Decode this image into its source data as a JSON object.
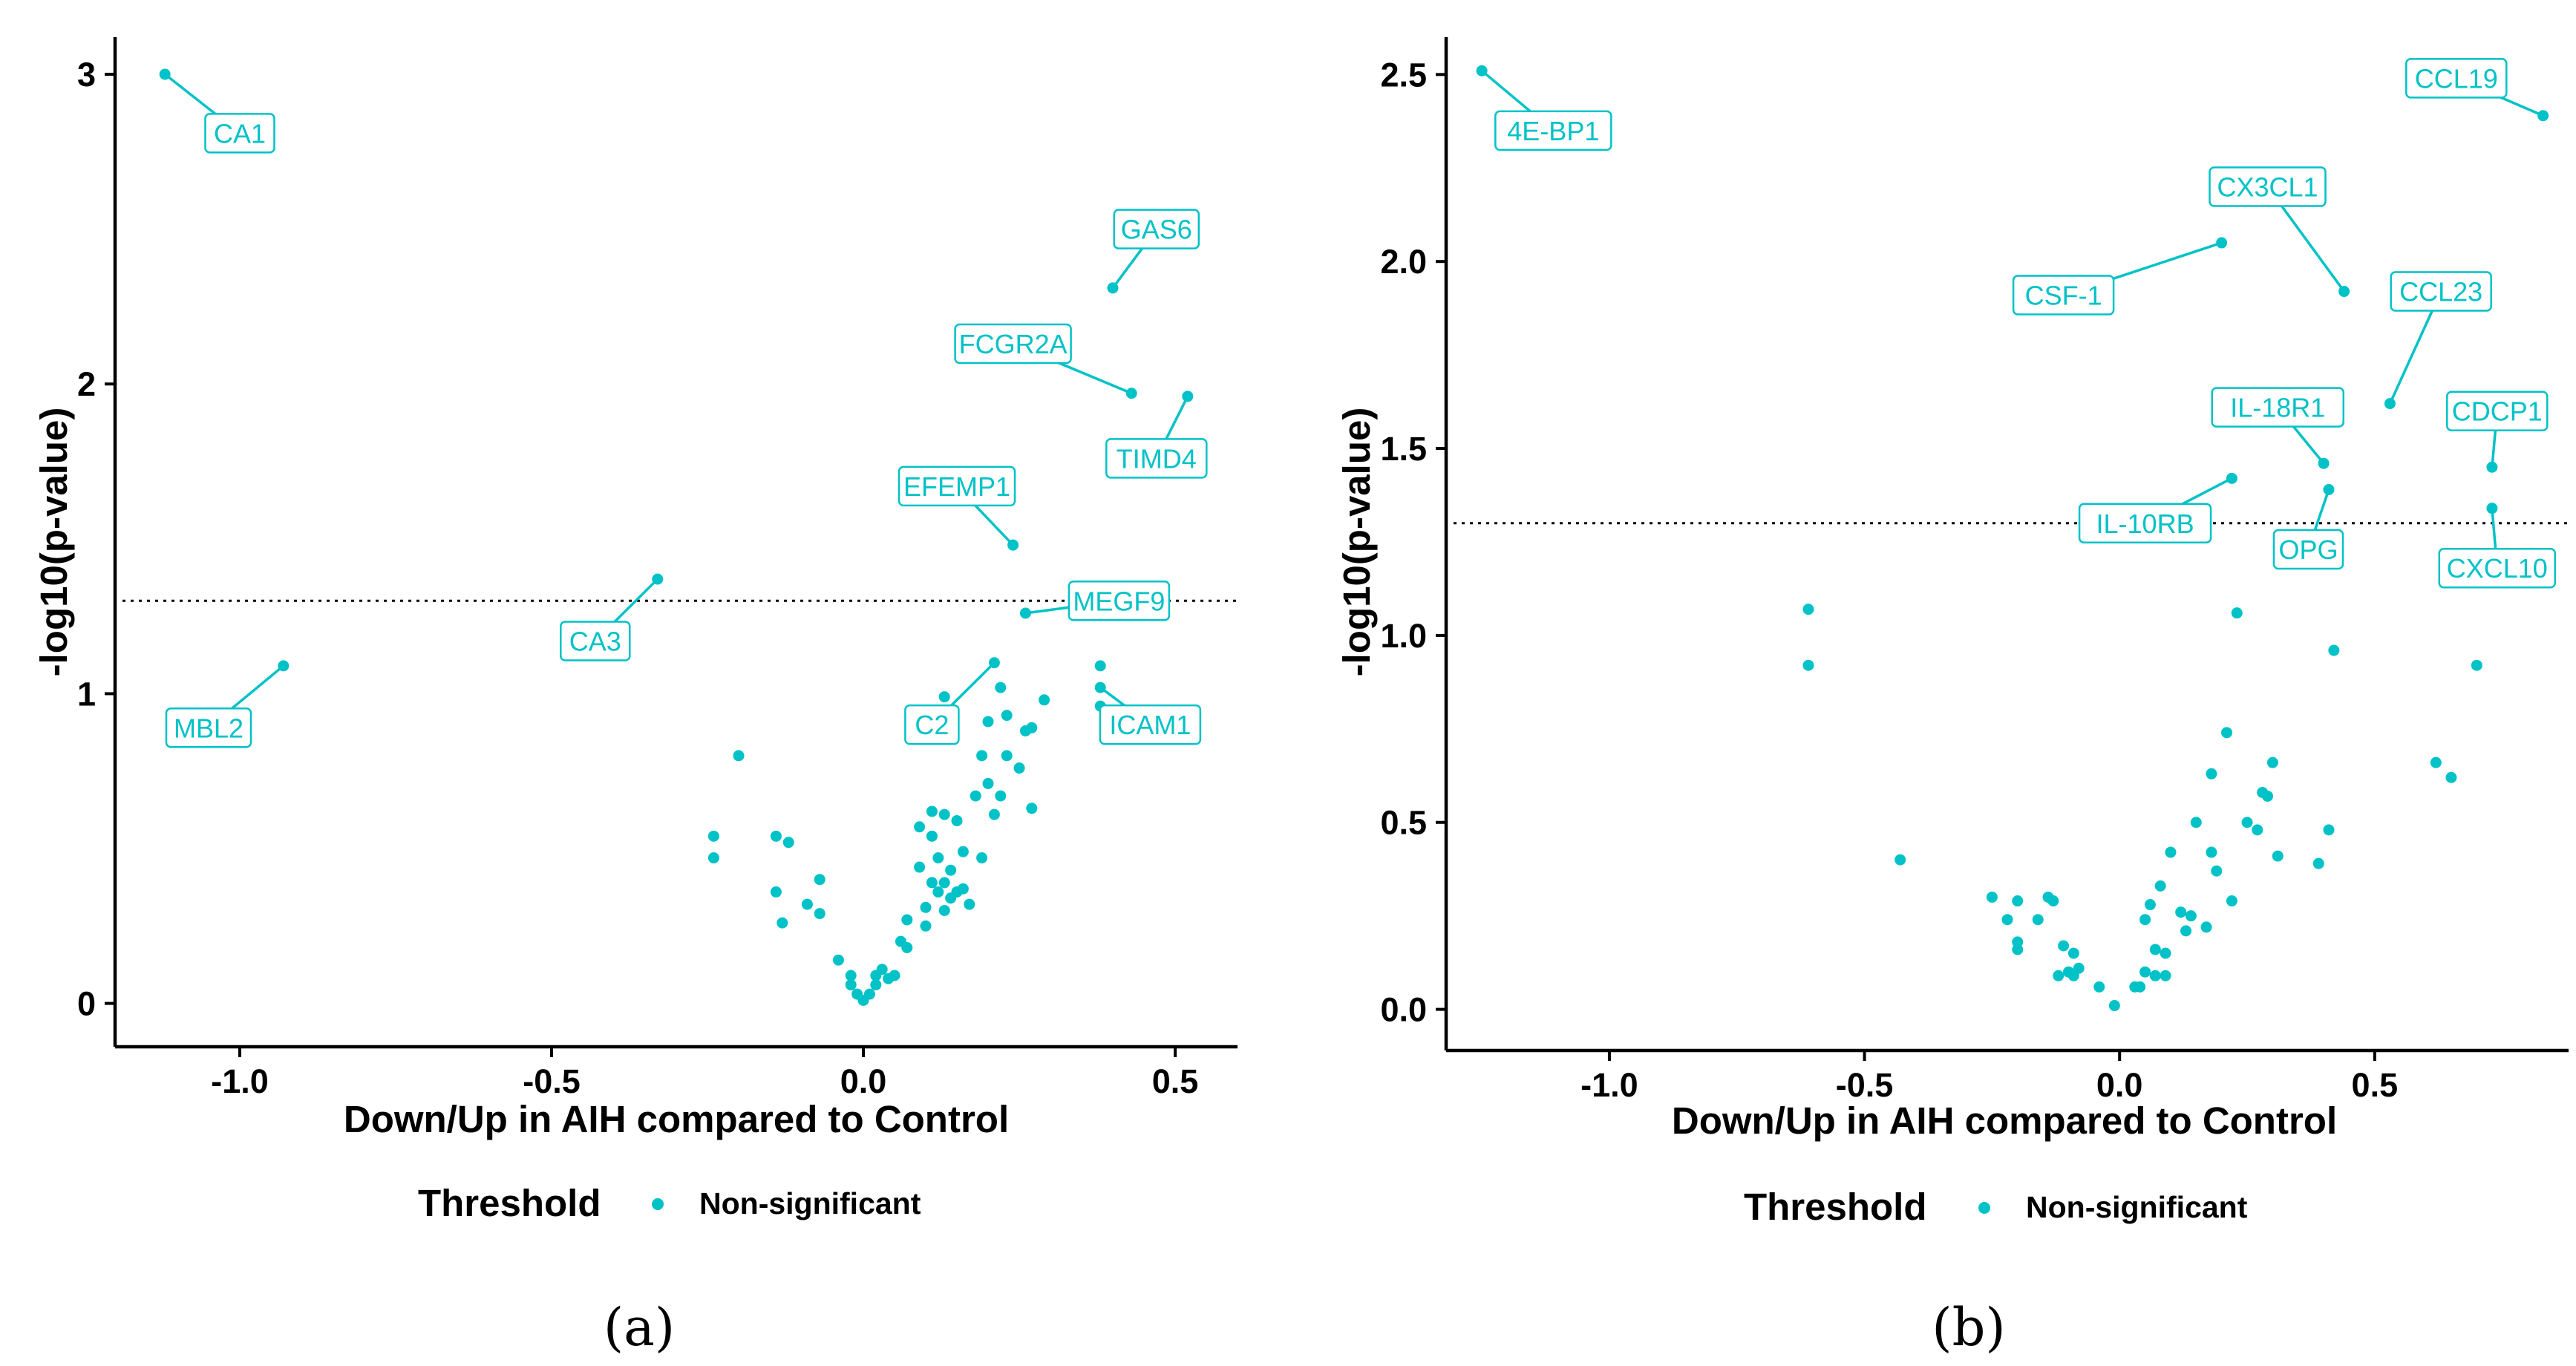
{
  "colors": {
    "point": "#00c2c7",
    "axis": "#000000"
  },
  "chart_data": [
    {
      "type": "scatter",
      "caption": "(a)",
      "xlabel": "Down/Up in AIH compared to Control",
      "ylabel": "-log10(p-value)",
      "xlim": [
        -1.2,
        0.6
      ],
      "ylim": [
        -0.14,
        3.12
      ],
      "xticks": [
        -1.0,
        -0.5,
        0.0,
        0.5
      ],
      "xtick_labels": [
        "-1.0",
        "-0.5",
        "0.0",
        "0.5"
      ],
      "yticks": [
        0,
        1,
        2,
        3
      ],
      "ytick_labels": [
        "0",
        "1",
        "2",
        "3"
      ],
      "threshold_y": 1.3,
      "legend": {
        "title": "Threshold",
        "label": "Non-significant"
      },
      "labeled_points": [
        {
          "label": "CA1",
          "x": -1.12,
          "y": 3.0,
          "lx": -1.0,
          "ly": 2.81
        },
        {
          "label": "GAS6",
          "x": 0.4,
          "y": 2.31,
          "lx": 0.47,
          "ly": 2.5
        },
        {
          "label": "FCGR2A",
          "x": 0.43,
          "y": 1.97,
          "lx": 0.24,
          "ly": 2.13
        },
        {
          "label": "TIMD4",
          "x": 0.52,
          "y": 1.96,
          "lx": 0.47,
          "ly": 1.76
        },
        {
          "label": "EFEMP1",
          "x": 0.24,
          "y": 1.48,
          "lx": 0.15,
          "ly": 1.67
        },
        {
          "label": "CA3",
          "x": -0.33,
          "y": 1.37,
          "lx": -0.43,
          "ly": 1.17
        },
        {
          "label": "MEGF9",
          "x": 0.26,
          "y": 1.26,
          "lx": 0.41,
          "ly": 1.3
        },
        {
          "label": "MBL2",
          "x": -0.93,
          "y": 1.09,
          "lx": -1.05,
          "ly": 0.89
        },
        {
          "label": "C2",
          "x": 0.21,
          "y": 1.1,
          "lx": 0.11,
          "ly": 0.9
        },
        {
          "label": "ICAM1",
          "x": 0.38,
          "y": 1.02,
          "lx": 0.46,
          "ly": 0.9
        }
      ],
      "points": [
        [
          -0.2,
          0.8
        ],
        [
          -0.24,
          0.54
        ],
        [
          -0.24,
          0.47
        ],
        [
          -0.14,
          0.54
        ],
        [
          -0.12,
          0.52
        ],
        [
          -0.14,
          0.36
        ],
        [
          -0.13,
          0.26
        ],
        [
          -0.09,
          0.32
        ],
        [
          -0.07,
          0.4
        ],
        [
          -0.07,
          0.29
        ],
        [
          -0.04,
          0.14
        ],
        [
          -0.02,
          0.09
        ],
        [
          -0.02,
          0.06
        ],
        [
          -0.01,
          0.03
        ],
        [
          0.0,
          0.01
        ],
        [
          0.01,
          0.03
        ],
        [
          0.02,
          0.06
        ],
        [
          0.02,
          0.09
        ],
        [
          0.03,
          0.11
        ],
        [
          0.04,
          0.08
        ],
        [
          0.05,
          0.09
        ],
        [
          0.06,
          0.2
        ],
        [
          0.07,
          0.27
        ],
        [
          0.07,
          0.18
        ],
        [
          0.09,
          0.44
        ],
        [
          0.09,
          0.57
        ],
        [
          0.1,
          0.31
        ],
        [
          0.1,
          0.25
        ],
        [
          0.11,
          0.62
        ],
        [
          0.11,
          0.54
        ],
        [
          0.11,
          0.39
        ],
        [
          0.12,
          0.47
        ],
        [
          0.12,
          0.36
        ],
        [
          0.13,
          0.61
        ],
        [
          0.13,
          0.39
        ],
        [
          0.13,
          0.3
        ],
        [
          0.13,
          0.99
        ],
        [
          0.14,
          0.43
        ],
        [
          0.14,
          0.34
        ],
        [
          0.15,
          0.59
        ],
        [
          0.15,
          0.36
        ],
        [
          0.16,
          0.49
        ],
        [
          0.16,
          0.37
        ],
        [
          0.17,
          0.32
        ],
        [
          0.18,
          0.67
        ],
        [
          0.19,
          0.47
        ],
        [
          0.19,
          0.8
        ],
        [
          0.2,
          0.91
        ],
        [
          0.2,
          0.71
        ],
        [
          0.21,
          0.61
        ],
        [
          0.22,
          0.67
        ],
        [
          0.23,
          0.93
        ],
        [
          0.23,
          0.8
        ],
        [
          0.25,
          0.76
        ],
        [
          0.26,
          0.88
        ],
        [
          0.27,
          0.89
        ],
        [
          0.27,
          0.63
        ],
        [
          0.29,
          0.98
        ],
        [
          0.38,
          1.09
        ],
        [
          0.38,
          0.96
        ],
        [
          0.22,
          1.02
        ]
      ]
    },
    {
      "type": "scatter",
      "caption": "(b)",
      "xlabel": "Down/Up in AIH compared to Control",
      "ylabel": "-log10(p-value)",
      "xlim": [
        -1.32,
        0.88
      ],
      "ylim": [
        -0.11,
        2.6
      ],
      "xticks": [
        -1.0,
        -0.5,
        0.0,
        0.5
      ],
      "xtick_labels": [
        "-1.0",
        "-0.5",
        "0.0",
        "0.5"
      ],
      "yticks": [
        0.0,
        0.5,
        1.0,
        1.5,
        2.0,
        2.5
      ],
      "ytick_labels": [
        "0.0",
        "0.5",
        "1.0",
        "1.5",
        "2.0",
        "2.5"
      ],
      "threshold_y": 1.3,
      "legend": {
        "title": "Threshold",
        "label": "Non-significant"
      },
      "labeled_points": [
        {
          "label": "4E-BP1",
          "x": -1.25,
          "y": 2.51,
          "lx": -1.11,
          "ly": 2.35
        },
        {
          "label": "CCL19",
          "x": 0.83,
          "y": 2.39,
          "lx": 0.66,
          "ly": 2.49
        },
        {
          "label": "CX3CL1",
          "x": 0.44,
          "y": 1.92,
          "lx": 0.29,
          "ly": 2.2
        },
        {
          "label": "CSF-1",
          "x": 0.2,
          "y": 2.05,
          "lx": -0.11,
          "ly": 1.91
        },
        {
          "label": "CCL23",
          "x": 0.53,
          "y": 1.62,
          "lx": 0.63,
          "ly": 1.92
        },
        {
          "label": "IL-18R1",
          "x": 0.4,
          "y": 1.46,
          "lx": 0.31,
          "ly": 1.61
        },
        {
          "label": "CDCP1",
          "x": 0.73,
          "y": 1.45,
          "lx": 0.74,
          "ly": 1.6
        },
        {
          "label": "IL-10RB",
          "x": 0.22,
          "y": 1.42,
          "lx": 0.05,
          "ly": 1.3
        },
        {
          "label": "OPG",
          "x": 0.41,
          "y": 1.39,
          "lx": 0.37,
          "ly": 1.23
        },
        {
          "label": "CXCL10",
          "x": 0.73,
          "y": 1.34,
          "lx": 0.74,
          "ly": 1.18
        }
      ],
      "points": [
        [
          -0.61,
          1.07
        ],
        [
          -0.61,
          0.92
        ],
        [
          -0.43,
          0.4
        ],
        [
          -0.25,
          0.3
        ],
        [
          -0.22,
          0.24
        ],
        [
          -0.2,
          0.29
        ],
        [
          -0.2,
          0.18
        ],
        [
          -0.2,
          0.16
        ],
        [
          -0.16,
          0.24
        ],
        [
          -0.14,
          0.3
        ],
        [
          -0.13,
          0.29
        ],
        [
          -0.12,
          0.09
        ],
        [
          -0.11,
          0.17
        ],
        [
          -0.1,
          0.1
        ],
        [
          -0.09,
          0.15
        ],
        [
          -0.09,
          0.09
        ],
        [
          -0.08,
          0.11
        ],
        [
          -0.04,
          0.06
        ],
        [
          -0.01,
          0.01
        ],
        [
          0.03,
          0.06
        ],
        [
          0.04,
          0.06
        ],
        [
          0.05,
          0.24
        ],
        [
          0.05,
          0.1
        ],
        [
          0.06,
          0.28
        ],
        [
          0.07,
          0.16
        ],
        [
          0.07,
          0.09
        ],
        [
          0.08,
          0.33
        ],
        [
          0.09,
          0.09
        ],
        [
          0.09,
          0.15
        ],
        [
          0.1,
          0.42
        ],
        [
          0.12,
          0.26
        ],
        [
          0.13,
          0.21
        ],
        [
          0.14,
          0.25
        ],
        [
          0.15,
          0.5
        ],
        [
          0.17,
          0.22
        ],
        [
          0.18,
          0.63
        ],
        [
          0.18,
          0.42
        ],
        [
          0.19,
          0.37
        ],
        [
          0.21,
          0.74
        ],
        [
          0.22,
          0.29
        ],
        [
          0.23,
          1.06
        ],
        [
          0.25,
          0.5
        ],
        [
          0.27,
          0.48
        ],
        [
          0.28,
          0.58
        ],
        [
          0.29,
          0.57
        ],
        [
          0.3,
          0.66
        ],
        [
          0.31,
          0.41
        ],
        [
          0.39,
          0.39
        ],
        [
          0.41,
          0.48
        ],
        [
          0.42,
          0.96
        ],
        [
          0.62,
          0.66
        ],
        [
          0.65,
          0.62
        ],
        [
          0.7,
          0.92
        ]
      ]
    }
  ]
}
